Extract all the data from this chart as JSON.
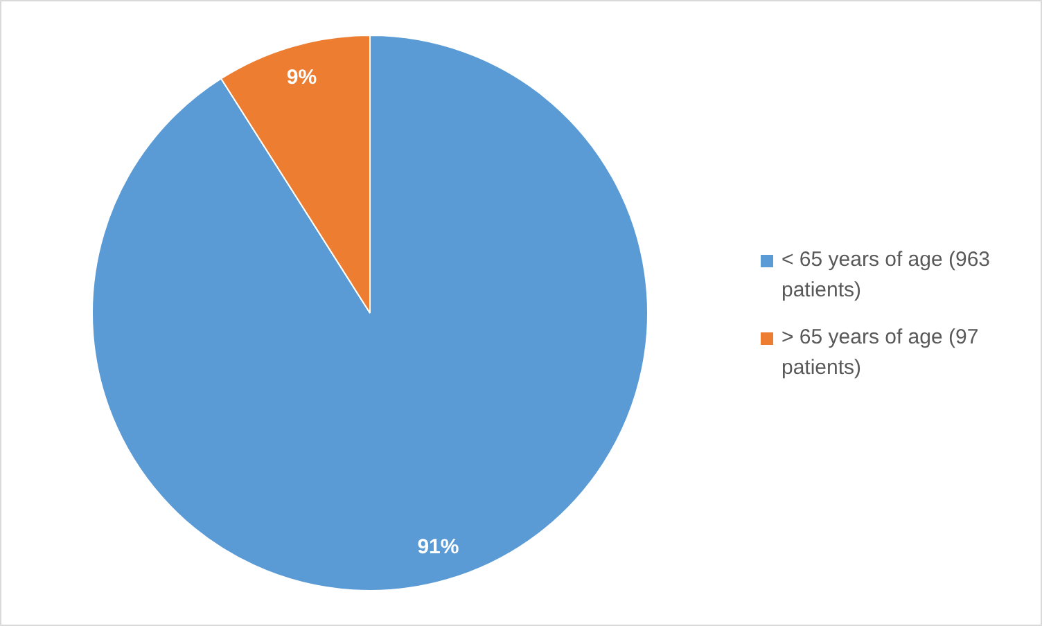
{
  "chart_data": {
    "type": "pie",
    "categories": [
      "< 65 years of age (963 patients)",
      "> 65 years of age (97 patients)"
    ],
    "values": [
      91,
      9
    ],
    "colors": [
      "#5b9bd5",
      "#ed7d31"
    ],
    "value_labels": [
      "91%",
      "9%"
    ],
    "legend": "right"
  }
}
